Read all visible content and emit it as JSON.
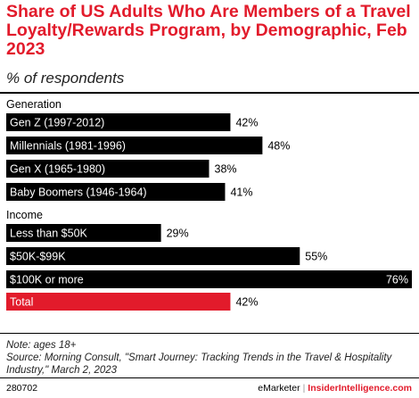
{
  "header": {
    "title": "Share of US Adults Who Are Members of a Travel Loyalty/Rewards Program, by Demographic, Feb 2023",
    "subtitle": "% of respondents"
  },
  "chart_data": {
    "type": "bar",
    "orientation": "horizontal",
    "groups": [
      {
        "name": "Generation",
        "items": [
          {
            "label": "Gen Z (1997-2012)",
            "value": 42,
            "display": "42%"
          },
          {
            "label": "Millennials (1981-1996)",
            "value": 48,
            "display": "48%"
          },
          {
            "label": "Gen X (1965-1980)",
            "value": 38,
            "display": "38%"
          },
          {
            "label": "Baby Boomers (1946-1964)",
            "value": 41,
            "display": "41%"
          }
        ]
      },
      {
        "name": "Income",
        "items": [
          {
            "label": "Less than $50K",
            "value": 29,
            "display": "29%"
          },
          {
            "label": "$50K-$99K",
            "value": 55,
            "display": "55%"
          },
          {
            "label": "$100K or more",
            "value": 76,
            "display": "76%"
          }
        ]
      }
    ],
    "total": {
      "label": "Total",
      "value": 42,
      "display": "42%"
    },
    "xlim": [
      0,
      76
    ],
    "colors": {
      "bar": "#000000",
      "total": "#e21b2b",
      "label_on_bar": "#ffffff"
    }
  },
  "notes": {
    "note": "Note: ages 18+",
    "source": "Source: Morning Consult, \"Smart Journey: Tracking Trends in the Travel & Hospitality Industry,\" March 2, 2023"
  },
  "footer": {
    "id": "280702",
    "brand_left": "eMarketer",
    "brand_sep": "|",
    "brand_right": "InsiderIntelligence.com"
  }
}
